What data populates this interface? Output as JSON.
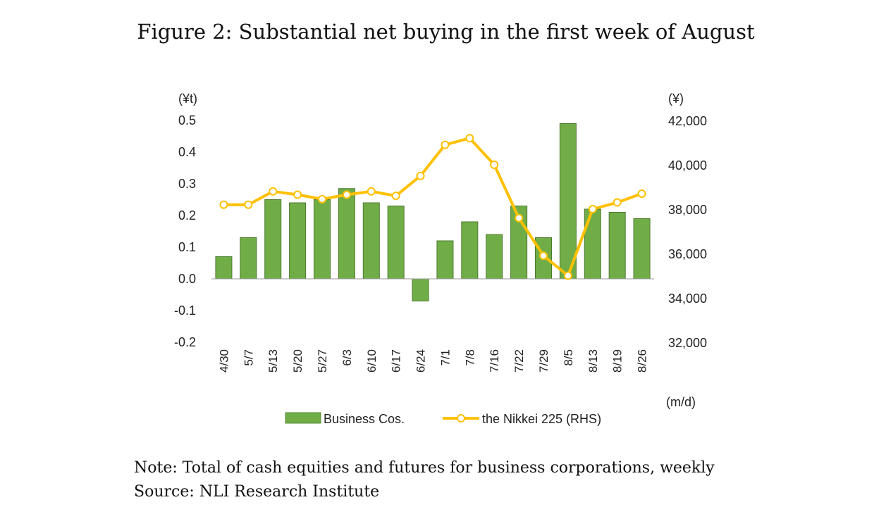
{
  "figure": {
    "title": "Figure 2: Substantial net buying in the first week of August",
    "note": "Note: Total of cash equities and futures for business corporations, weekly",
    "source": "Source: NLI Research Institute"
  },
  "chart_data": {
    "type": "bar",
    "title": "",
    "categories": [
      "4/30",
      "5/7",
      "5/13",
      "5/20",
      "5/27",
      "6/3",
      "6/10",
      "6/17",
      "6/24",
      "7/1",
      "7/8",
      "7/16",
      "7/22",
      "7/29",
      "8/5",
      "8/13",
      "8/19",
      "8/26"
    ],
    "xlabel": "(m/d)",
    "y_left": {
      "label": "(¥t)",
      "ylim": [
        -0.2,
        0.5
      ],
      "ticks": [
        0.5,
        0.4,
        0.3,
        0.2,
        0.1,
        0.0,
        -0.1,
        -0.2
      ],
      "tick_labels": [
        "0.5",
        "0.4",
        "0.3",
        "0.2",
        "0.1",
        "0.0",
        "-0.1",
        "-0.2"
      ]
    },
    "y_right": {
      "label": "(¥)",
      "ylim": [
        32000,
        42000
      ],
      "ticks": [
        42000,
        40000,
        38000,
        36000,
        34000,
        32000
      ],
      "tick_labels": [
        "42,000",
        "40,000",
        "38,000",
        "36,000",
        "34,000",
        "32,000"
      ]
    },
    "series": [
      {
        "name": "Business Cos.",
        "type": "bar",
        "axis": "left",
        "color": "#70ad47",
        "values": [
          0.07,
          0.13,
          0.25,
          0.24,
          0.25,
          0.285,
          0.24,
          0.23,
          -0.07,
          0.12,
          0.18,
          0.14,
          0.23,
          0.13,
          0.49,
          0.22,
          0.21,
          0.19
        ]
      },
      {
        "name": "the Nikkei 225 (RHS)",
        "type": "line",
        "axis": "right",
        "color": "#ffc000",
        "values": [
          38200,
          38200,
          38800,
          38650,
          38450,
          38650,
          38800,
          38600,
          39500,
          40900,
          41200,
          40000,
          37600,
          35900,
          35000,
          38000,
          38300,
          38700
        ]
      }
    ],
    "legend": "bottom",
    "grid": false
  }
}
